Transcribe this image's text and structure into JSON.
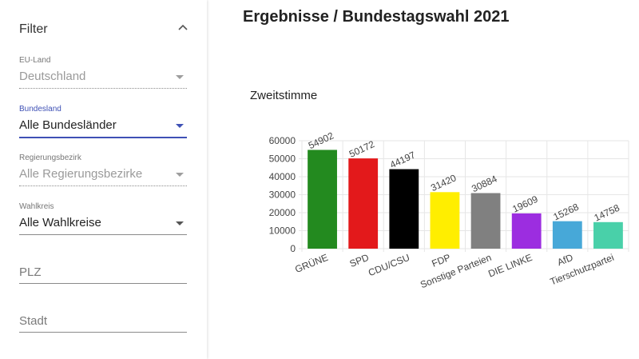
{
  "sidebar": {
    "title": "Filter",
    "fields": [
      {
        "label": "EU-Land",
        "value": "Deutschland"
      },
      {
        "label": "Bundesland",
        "value": "Alle Bundesländer"
      },
      {
        "label": "Regierungsbezirk",
        "value": "Alle Regierungsbezirke"
      },
      {
        "label": "Wahlkreis",
        "value": "Alle Wahlkreise"
      }
    ],
    "plz_placeholder": "PLZ",
    "stadt_placeholder": "Stadt"
  },
  "main": {
    "title": "Ergebnisse / Bundestagswahl 2021",
    "section_title": "Zweitstimme"
  },
  "colors": {
    "accent": "#3f51b5"
  },
  "chart_data": {
    "type": "bar",
    "categories": [
      "GRÜNE",
      "SPD",
      "CDU/CSU",
      "FDP",
      "Sonstige Parteien",
      "DIE LINKE",
      "AfD",
      "Tierschutzpartei"
    ],
    "values": [
      54902,
      50172,
      44197,
      31420,
      30884,
      19609,
      15268,
      14758
    ],
    "colors": [
      "#238a1f",
      "#e3191b",
      "#000000",
      "#ffee00",
      "#808080",
      "#9c2de0",
      "#47a8d8",
      "#49d0a9"
    ],
    "yticks": [
      0,
      10000,
      20000,
      30000,
      40000,
      50000,
      60000
    ],
    "ylim": [
      0,
      60000
    ],
    "grid": true
  }
}
